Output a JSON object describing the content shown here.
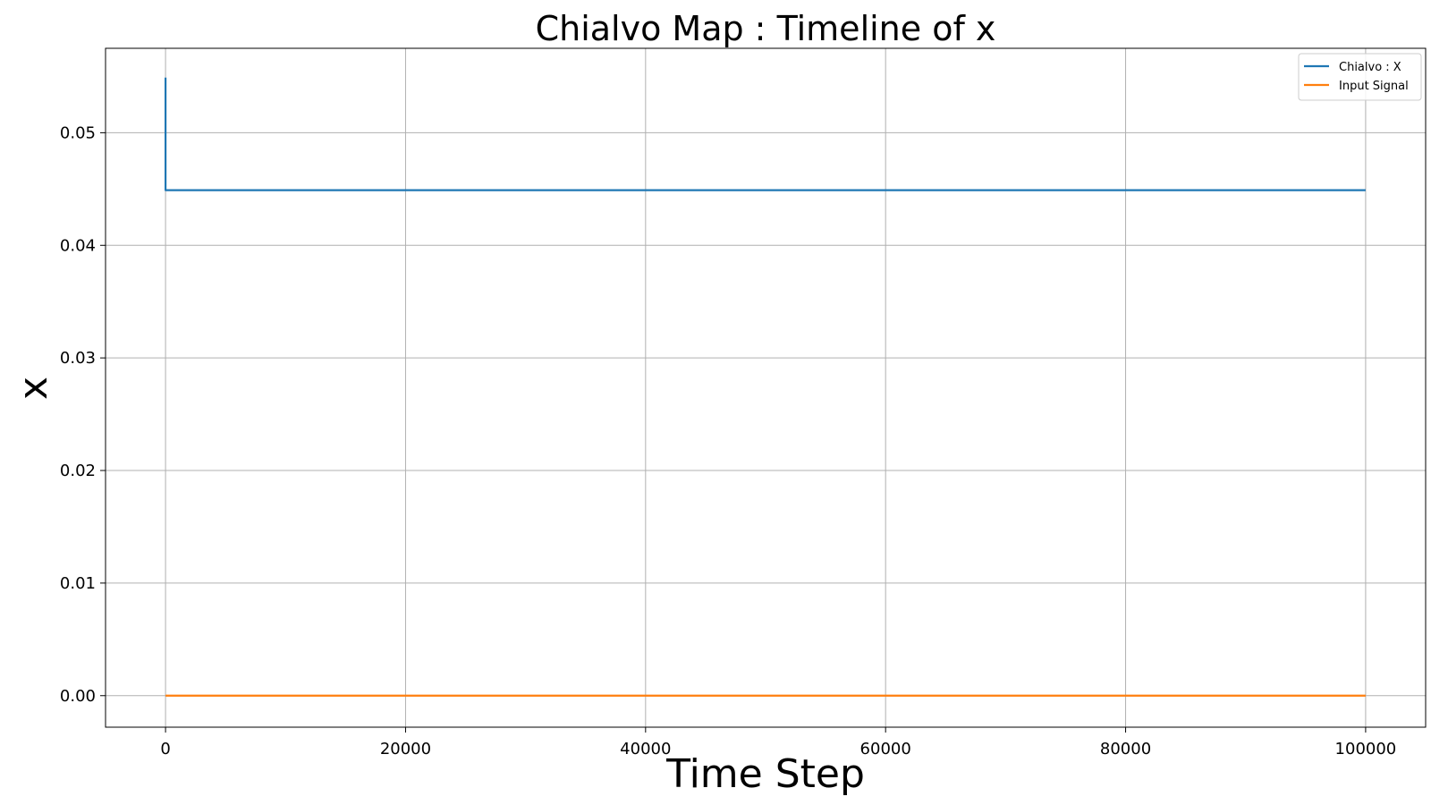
{
  "chart_data": {
    "type": "line",
    "title": "Chialvo Map : Timeline of x",
    "xlabel": "Time Step",
    "ylabel": "x",
    "xlim": [
      -5000,
      105000
    ],
    "ylim": [
      -0.0028,
      0.0575
    ],
    "xticks": [
      0,
      20000,
      40000,
      60000,
      80000,
      100000
    ],
    "xtick_labels": [
      "0",
      "20000",
      "40000",
      "60000",
      "80000",
      "100000"
    ],
    "yticks": [
      0.0,
      0.01,
      0.02,
      0.03,
      0.04,
      0.05
    ],
    "ytick_labels": [
      "0.00",
      "0.01",
      "0.02",
      "0.03",
      "0.04",
      "0.05"
    ],
    "grid": true,
    "legend_position": "top-right",
    "series": [
      {
        "name": "Chialvo : X",
        "color": "#1f77b4",
        "x": [
          0,
          1,
          2,
          100000
        ],
        "y": [
          0.0549,
          0.0449,
          0.0449,
          0.0449
        ]
      },
      {
        "name": "Input Signal",
        "color": "#ff7f0e",
        "x": [
          0,
          100000
        ],
        "y": [
          0.0,
          0.0
        ]
      }
    ]
  }
}
